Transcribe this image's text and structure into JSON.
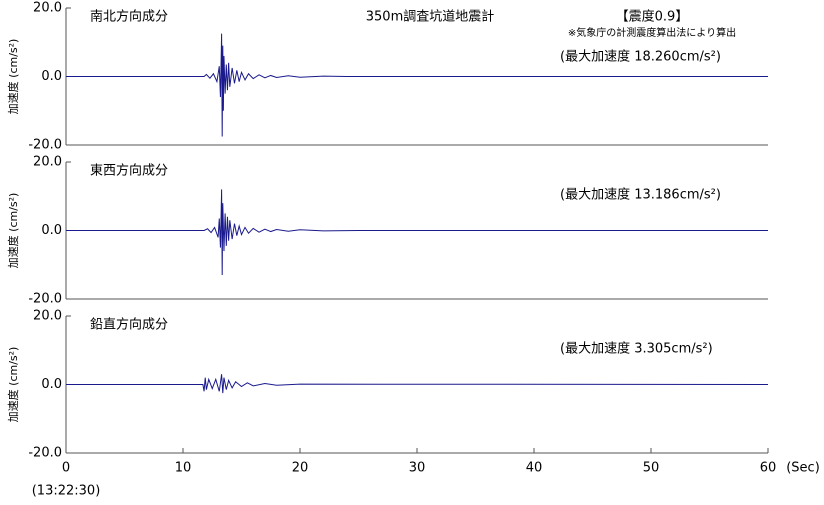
{
  "chart_data": [
    {
      "type": "line",
      "title": "南北方向成分",
      "subtitle": "350m調査坑道地震計",
      "intensity": "【震度0.9】",
      "note": "※気象庁の計測震度算出法により算出",
      "annotation": "(最大加速度 18.260cm/s²)",
      "ylabel": "加速度 (cm/s²)",
      "xlim": [
        0,
        60
      ],
      "ylim": [
        -20,
        20
      ],
      "yticks": [
        {
          "value": 20,
          "label": "20.0"
        },
        {
          "value": 0,
          "label": "0.0"
        },
        {
          "value": -20,
          "label": "-20.0"
        }
      ],
      "x": [
        0,
        11.8,
        12.0,
        12.3,
        12.6,
        12.9,
        13.1,
        13.2,
        13.3,
        13.35,
        13.4,
        13.45,
        13.5,
        13.6,
        13.7,
        13.8,
        13.9,
        14.0,
        14.2,
        14.4,
        14.6,
        14.8,
        15.0,
        15.3,
        15.6,
        16.0,
        16.5,
        17.0,
        17.5,
        18.0,
        19.0,
        20.0,
        22.0,
        24.0,
        60
      ],
      "series": [
        {
          "color": "#1a1a8c",
          "values": [
            0,
            0,
            0.6,
            -0.5,
            0.8,
            -1.5,
            3,
            -6,
            12.5,
            -17.5,
            9,
            -10,
            6,
            -5,
            3.5,
            -4,
            4,
            -3,
            2.5,
            -2,
            1.8,
            -1.5,
            1.2,
            -1,
            0.8,
            -0.6,
            0.5,
            -0.4,
            0.3,
            -0.3,
            0.2,
            -0.2,
            0.1,
            0,
            0
          ]
        }
      ]
    },
    {
      "type": "line",
      "title": "東西方向成分",
      "annotation": "(最大加速度 13.186cm/s²)",
      "ylabel": "加速度 (cm/s²)",
      "xlim": [
        0,
        60
      ],
      "ylim": [
        -20,
        20
      ],
      "yticks": [
        {
          "value": 20,
          "label": "20.0"
        },
        {
          "value": 0,
          "label": "0.0"
        },
        {
          "value": -20,
          "label": "-20.0"
        }
      ],
      "x": [
        0,
        11.8,
        12.1,
        12.4,
        12.7,
        13.0,
        13.1,
        13.2,
        13.3,
        13.35,
        13.4,
        13.5,
        13.6,
        13.7,
        13.8,
        13.9,
        14.0,
        14.2,
        14.4,
        14.6,
        14.8,
        15.0,
        15.3,
        15.6,
        16.0,
        16.5,
        17.0,
        17.5,
        18.0,
        19.0,
        20.0,
        22.0,
        25.0,
        60
      ],
      "series": [
        {
          "color": "#1a1a8c",
          "values": [
            0,
            0,
            0.5,
            -0.6,
            0.9,
            -2,
            3.5,
            -5,
            12,
            -13,
            8,
            -6,
            5,
            -4.5,
            4,
            -3,
            3,
            -2.5,
            2,
            -1.5,
            1.3,
            -1.2,
            0.9,
            -0.8,
            0.6,
            -0.5,
            0.4,
            -0.3,
            0.3,
            -0.2,
            0.2,
            -0.1,
            0,
            0
          ]
        }
      ]
    },
    {
      "type": "line",
      "title": "鉛直方向成分",
      "annotation": "(最大加速度 3.305cm/s²)",
      "ylabel": "加速度 (cm/s²)",
      "xlim": [
        0,
        60
      ],
      "ylim": [
        -20,
        20
      ],
      "yticks": [
        {
          "value": 20,
          "label": "20.0"
        },
        {
          "value": 0,
          "label": "0.0"
        },
        {
          "value": -20,
          "label": "-20.0"
        }
      ],
      "xticks": [
        0,
        10,
        20,
        30,
        40,
        50,
        60
      ],
      "xlabel": "(Sec)",
      "time_label": "(13:22:30)",
      "x": [
        0,
        11.7,
        11.8,
        11.9,
        12.0,
        12.2,
        12.5,
        12.8,
        13.1,
        13.3,
        13.4,
        13.5,
        13.7,
        13.9,
        14.2,
        14.5,
        15.0,
        15.5,
        16.0,
        17.0,
        18.0,
        20.0,
        60
      ],
      "series": [
        {
          "color": "#1a1a8c",
          "values": [
            0,
            0,
            -2,
            2,
            -1.5,
            1.5,
            -1.2,
            1.5,
            -2,
            3,
            -2.5,
            2,
            -1.5,
            1.2,
            -1,
            0.8,
            -0.6,
            0.5,
            -0.4,
            0.3,
            -0.2,
            0.1,
            0
          ]
        }
      ]
    }
  ]
}
